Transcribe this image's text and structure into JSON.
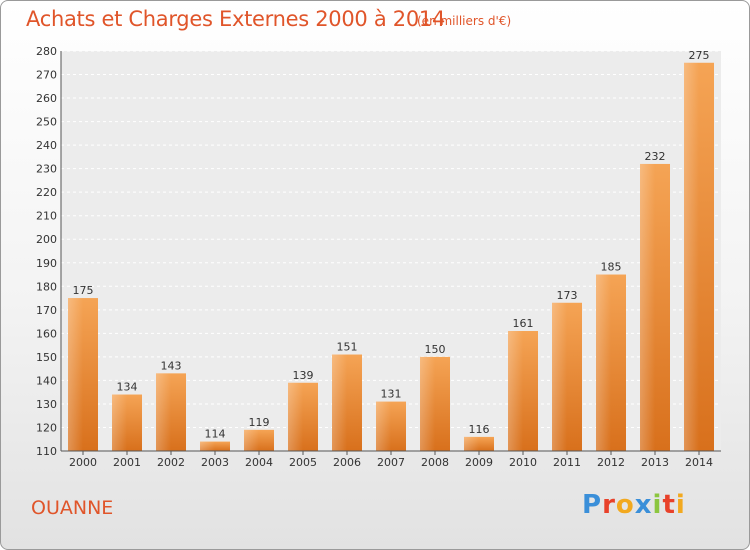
{
  "chart_data": {
    "type": "bar",
    "title": "Achats et Charges Externes 2000 à 2014",
    "subtitle": "(en milliers d'€)",
    "categories": [
      "2000",
      "2001",
      "2002",
      "2003",
      "2004",
      "2005",
      "2006",
      "2007",
      "2008",
      "2009",
      "2010",
      "2011",
      "2012",
      "2013",
      "2014"
    ],
    "values": [
      175,
      134,
      143,
      114,
      119,
      139,
      151,
      131,
      150,
      116,
      161,
      173,
      185,
      232,
      275
    ],
    "ylim": [
      110,
      280
    ],
    "yticks": [
      110,
      120,
      130,
      140,
      150,
      160,
      170,
      180,
      190,
      200,
      210,
      220,
      230,
      240,
      250,
      260,
      270,
      280
    ],
    "grid": true,
    "bar_color": "#e8822a"
  },
  "footer": {
    "commune": "OUANNE",
    "logo_text": "Proxiti",
    "logo_colors": [
      "#3a8fd9",
      "#e8412a",
      "#f2a91f",
      "#3a8fd9",
      "#8cc63f",
      "#e8412a",
      "#f2a91f"
    ]
  }
}
